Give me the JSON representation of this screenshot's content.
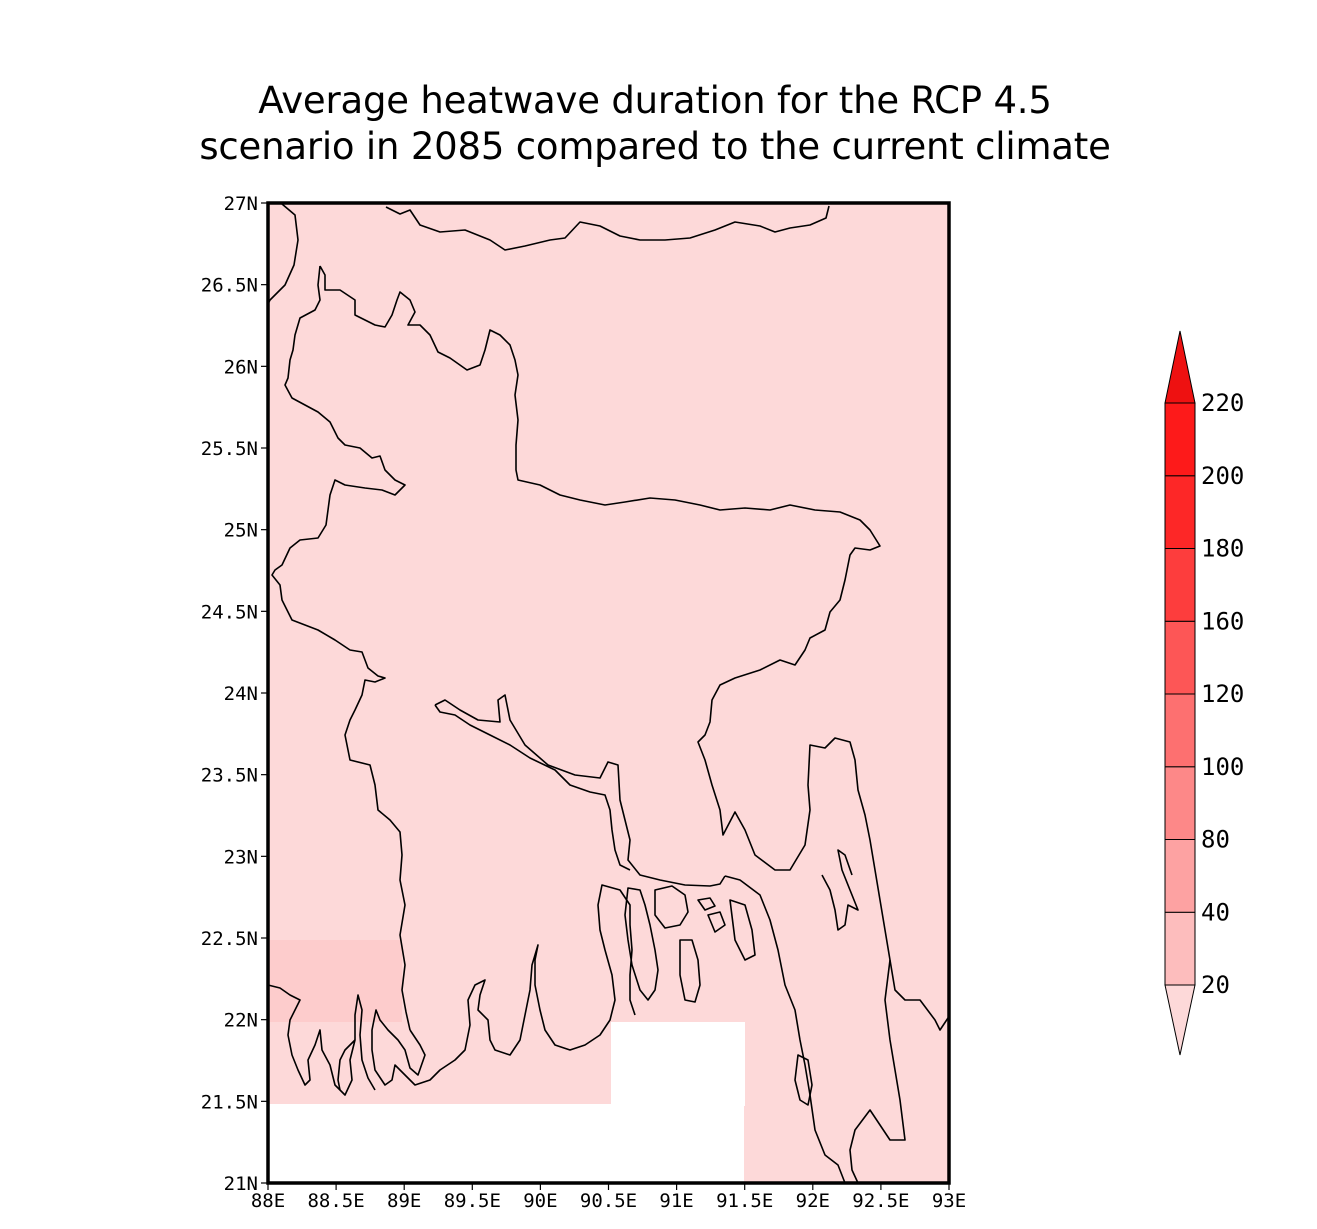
{
  "title": {
    "line1": "Average heatwave duration for the RCP 4.5",
    "line2": "scenario in 2085 compared to the current climate"
  },
  "map": {
    "lon_range": [
      88,
      93
    ],
    "lat_range": [
      21,
      27
    ],
    "x_ticks": [
      "88E",
      "88.5E",
      "89E",
      "89.5E",
      "90E",
      "90.5E",
      "91E",
      "91.5E",
      "92E",
      "92.5E",
      "93E"
    ],
    "y_ticks": [
      "21N",
      "21.5N",
      "22N",
      "22.5N",
      "23N",
      "23.5N",
      "24N",
      "24.5N",
      "25N",
      "25.5N",
      "26N",
      "26.5N",
      "27N"
    ],
    "background_fill": "#fdd9d9",
    "highlight_fill": "#fdcccc",
    "outline_color": "#000000"
  },
  "colorbar": {
    "labels": [
      "20",
      "40",
      "80",
      "100",
      "120",
      "160",
      "180",
      "200",
      "220"
    ],
    "colors": [
      "#fdd9d9",
      "#fdbdbd",
      "#fda2a2",
      "#fd8888",
      "#fd7070",
      "#fd5656",
      "#fd3d3d",
      "#fd2727",
      "#fd1a1a",
      "#ee1111"
    ]
  }
}
